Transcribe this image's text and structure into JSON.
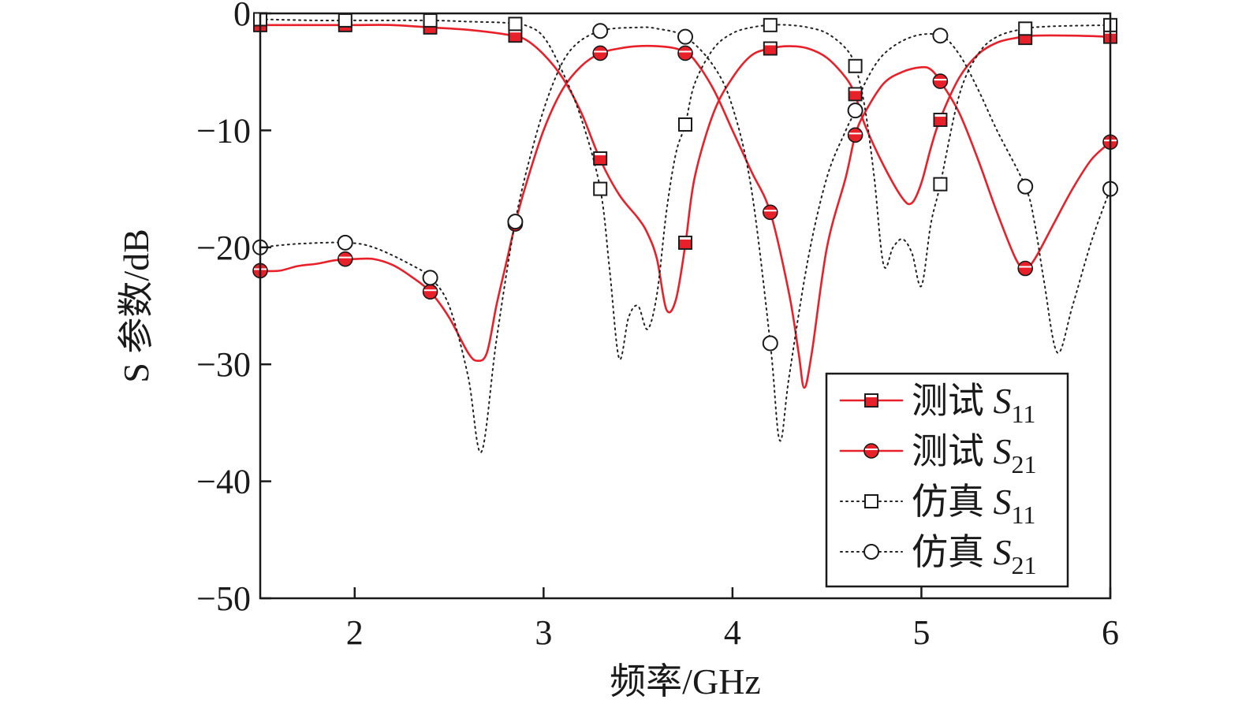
{
  "chart_data": {
    "type": "line",
    "xlabel": "频率/GHz",
    "ylabel": "S 参数/dB",
    "xlim": [
      1.5,
      6
    ],
    "ylim": [
      -50,
      0
    ],
    "xticks": [
      2,
      3,
      4,
      5,
      6
    ],
    "yticks": [
      0,
      -10,
      -20,
      -30,
      -40,
      -50
    ],
    "ytick_labels": [
      "0",
      "−10",
      "−20",
      "−30",
      "−40",
      "−50"
    ],
    "grid": false,
    "legend_position": "bottom-right",
    "series": [
      {
        "legend_prefix": "测试 ",
        "legend_symbol": "S",
        "legend_subscript": "11",
        "color": "#e8202a",
        "line_style": "solid",
        "marker": "square-filled",
        "points": [
          [
            1.5,
            -1.0
          ],
          [
            1.8,
            -1.0
          ],
          [
            2.0,
            -1.0
          ],
          [
            2.2,
            -1.0
          ],
          [
            2.4,
            -1.2
          ],
          [
            2.6,
            -1.4
          ],
          [
            2.8,
            -1.8
          ],
          [
            2.9,
            -2.2
          ],
          [
            3.0,
            -3.5
          ],
          [
            3.1,
            -5.5
          ],
          [
            3.2,
            -8.5
          ],
          [
            3.3,
            -12.5
          ],
          [
            3.4,
            -15.5
          ],
          [
            3.5,
            -17.5
          ],
          [
            3.55,
            -18.8
          ],
          [
            3.6,
            -21.0
          ],
          [
            3.65,
            -25.3
          ],
          [
            3.7,
            -24.5
          ],
          [
            3.75,
            -19.8
          ],
          [
            3.8,
            -14.0
          ],
          [
            3.9,
            -8.5
          ],
          [
            4.0,
            -5.5
          ],
          [
            4.1,
            -3.6
          ],
          [
            4.2,
            -3.0
          ],
          [
            4.3,
            -2.8
          ],
          [
            4.4,
            -3.0
          ],
          [
            4.5,
            -3.8
          ],
          [
            4.6,
            -5.5
          ],
          [
            4.65,
            -7.0
          ],
          [
            4.7,
            -9.5
          ],
          [
            4.8,
            -13.0
          ],
          [
            4.9,
            -15.8
          ],
          [
            4.95,
            -16.2
          ],
          [
            5.0,
            -14.5
          ],
          [
            5.05,
            -11.5
          ],
          [
            5.1,
            -9.0
          ],
          [
            5.2,
            -5.5
          ],
          [
            5.3,
            -3.5
          ],
          [
            5.4,
            -2.5
          ],
          [
            5.5,
            -2.1
          ],
          [
            5.6,
            -1.9
          ],
          [
            5.8,
            -1.9
          ],
          [
            6.0,
            -2.0
          ]
        ],
        "marker_points": [
          [
            1.5,
            -1.0
          ],
          [
            1.95,
            -1.0
          ],
          [
            2.4,
            -1.2
          ],
          [
            2.85,
            -1.9
          ],
          [
            3.3,
            -12.4
          ],
          [
            3.75,
            -19.6
          ],
          [
            4.2,
            -3.0
          ],
          [
            4.65,
            -6.9
          ],
          [
            5.1,
            -9.1
          ],
          [
            5.55,
            -2.1
          ],
          [
            6.0,
            -2.0
          ]
        ]
      },
      {
        "legend_prefix": "测试 ",
        "legend_symbol": "S",
        "legend_subscript": "21",
        "color": "#e8202a",
        "line_style": "solid",
        "marker": "circle-filled",
        "points": [
          [
            1.5,
            -22.0
          ],
          [
            1.6,
            -22.0
          ],
          [
            1.7,
            -21.6
          ],
          [
            1.8,
            -21.4
          ],
          [
            1.9,
            -21.1
          ],
          [
            2.0,
            -21.0
          ],
          [
            2.1,
            -21.0
          ],
          [
            2.2,
            -21.5
          ],
          [
            2.3,
            -22.5
          ],
          [
            2.4,
            -23.8
          ],
          [
            2.5,
            -26.0
          ],
          [
            2.6,
            -29.0
          ],
          [
            2.65,
            -29.7
          ],
          [
            2.7,
            -29.0
          ],
          [
            2.75,
            -25.0
          ],
          [
            2.8,
            -21.5
          ],
          [
            2.85,
            -18.0
          ],
          [
            2.9,
            -15.0
          ],
          [
            3.0,
            -10.0
          ],
          [
            3.1,
            -6.5
          ],
          [
            3.2,
            -4.5
          ],
          [
            3.3,
            -3.4
          ],
          [
            3.4,
            -3.0
          ],
          [
            3.5,
            -2.8
          ],
          [
            3.6,
            -2.8
          ],
          [
            3.7,
            -3.0
          ],
          [
            3.75,
            -3.4
          ],
          [
            3.8,
            -4.0
          ],
          [
            3.9,
            -6.5
          ],
          [
            4.0,
            -10.0
          ],
          [
            4.1,
            -13.5
          ],
          [
            4.2,
            -17.0
          ],
          [
            4.3,
            -24.0
          ],
          [
            4.35,
            -29.0
          ],
          [
            4.38,
            -32.0
          ],
          [
            4.42,
            -29.0
          ],
          [
            4.5,
            -20.0
          ],
          [
            4.6,
            -14.0
          ],
          [
            4.65,
            -10.4
          ],
          [
            4.7,
            -8.5
          ],
          [
            4.8,
            -6.0
          ],
          [
            4.9,
            -5.0
          ],
          [
            5.0,
            -4.6
          ],
          [
            5.05,
            -4.8
          ],
          [
            5.1,
            -5.8
          ],
          [
            5.2,
            -8.5
          ],
          [
            5.3,
            -12.5
          ],
          [
            5.4,
            -17.0
          ],
          [
            5.5,
            -21.0
          ],
          [
            5.55,
            -21.8
          ],
          [
            5.6,
            -21.0
          ],
          [
            5.7,
            -18.0
          ],
          [
            5.8,
            -15.0
          ],
          [
            5.9,
            -12.5
          ],
          [
            6.0,
            -11.0
          ]
        ],
        "marker_points": [
          [
            1.5,
            -22.0
          ],
          [
            1.95,
            -21.0
          ],
          [
            2.4,
            -23.8
          ],
          [
            2.85,
            -18.0
          ],
          [
            3.3,
            -3.4
          ],
          [
            3.75,
            -3.4
          ],
          [
            4.2,
            -17.0
          ],
          [
            4.65,
            -10.4
          ],
          [
            5.1,
            -5.8
          ],
          [
            5.55,
            -21.8
          ],
          [
            6.0,
            -11.0
          ]
        ]
      },
      {
        "legend_prefix": "仿真 ",
        "legend_symbol": "S",
        "legend_subscript": "11",
        "color": "#222222",
        "line_style": "dotted",
        "marker": "square-open",
        "points": [
          [
            1.5,
            -0.5
          ],
          [
            1.8,
            -0.6
          ],
          [
            2.0,
            -0.6
          ],
          [
            2.4,
            -0.6
          ],
          [
            2.6,
            -0.7
          ],
          [
            2.8,
            -0.8
          ],
          [
            2.9,
            -1.0
          ],
          [
            3.0,
            -2.0
          ],
          [
            3.1,
            -5.0
          ],
          [
            3.2,
            -9.0
          ],
          [
            3.3,
            -15.0
          ],
          [
            3.35,
            -22.0
          ],
          [
            3.4,
            -29.5
          ],
          [
            3.45,
            -26.0
          ],
          [
            3.5,
            -25.0
          ],
          [
            3.55,
            -27.0
          ],
          [
            3.6,
            -24.0
          ],
          [
            3.65,
            -17.0
          ],
          [
            3.7,
            -12.0
          ],
          [
            3.75,
            -9.5
          ],
          [
            3.8,
            -6.0
          ],
          [
            3.9,
            -3.0
          ],
          [
            4.0,
            -1.7
          ],
          [
            4.1,
            -1.2
          ],
          [
            4.2,
            -1.0
          ],
          [
            4.3,
            -1.0
          ],
          [
            4.4,
            -1.2
          ],
          [
            4.5,
            -1.7
          ],
          [
            4.6,
            -3.0
          ],
          [
            4.65,
            -4.5
          ],
          [
            4.7,
            -8.0
          ],
          [
            4.75,
            -14.0
          ],
          [
            4.8,
            -21.5
          ],
          [
            4.85,
            -20.0
          ],
          [
            4.9,
            -19.3
          ],
          [
            4.95,
            -20.5
          ],
          [
            5.0,
            -23.3
          ],
          [
            5.05,
            -18.0
          ],
          [
            5.1,
            -14.6
          ],
          [
            5.2,
            -7.0
          ],
          [
            5.3,
            -3.5
          ],
          [
            5.4,
            -2.0
          ],
          [
            5.55,
            -1.3
          ],
          [
            5.7,
            -1.1
          ],
          [
            6.0,
            -1.0
          ]
        ],
        "marker_points": [
          [
            1.5,
            -0.5
          ],
          [
            1.95,
            -0.6
          ],
          [
            2.4,
            -0.6
          ],
          [
            2.85,
            -0.9
          ],
          [
            3.3,
            -15.0
          ],
          [
            3.75,
            -9.5
          ],
          [
            4.2,
            -1.0
          ],
          [
            4.65,
            -4.5
          ],
          [
            5.1,
            -14.6
          ],
          [
            5.55,
            -1.3
          ],
          [
            6.0,
            -1.0
          ]
        ]
      },
      {
        "legend_prefix": "仿真 ",
        "legend_symbol": "S",
        "legend_subscript": "21",
        "color": "#222222",
        "line_style": "dotted",
        "marker": "circle-open",
        "points": [
          [
            1.5,
            -20.0
          ],
          [
            1.7,
            -19.7
          ],
          [
            1.95,
            -19.6
          ],
          [
            2.1,
            -20.0
          ],
          [
            2.3,
            -21.5
          ],
          [
            2.4,
            -22.6
          ],
          [
            2.5,
            -25.0
          ],
          [
            2.6,
            -31.0
          ],
          [
            2.67,
            -37.5
          ],
          [
            2.75,
            -28.0
          ],
          [
            2.85,
            -17.8
          ],
          [
            2.95,
            -11.0
          ],
          [
            3.05,
            -6.0
          ],
          [
            3.15,
            -3.0
          ],
          [
            3.3,
            -1.5
          ],
          [
            3.5,
            -1.2
          ],
          [
            3.6,
            -1.3
          ],
          [
            3.75,
            -2.0
          ],
          [
            3.9,
            -4.5
          ],
          [
            4.0,
            -8.0
          ],
          [
            4.1,
            -15.0
          ],
          [
            4.2,
            -28.2
          ],
          [
            4.25,
            -36.5
          ],
          [
            4.3,
            -31.0
          ],
          [
            4.4,
            -21.0
          ],
          [
            4.5,
            -14.0
          ],
          [
            4.6,
            -10.0
          ],
          [
            4.65,
            -8.3
          ],
          [
            4.7,
            -6.0
          ],
          [
            4.8,
            -3.5
          ],
          [
            4.95,
            -2.0
          ],
          [
            5.1,
            -1.9
          ],
          [
            5.2,
            -3.5
          ],
          [
            5.3,
            -6.5
          ],
          [
            5.4,
            -10.0
          ],
          [
            5.55,
            -14.8
          ],
          [
            5.6,
            -18.0
          ],
          [
            5.65,
            -23.0
          ],
          [
            5.72,
            -29.0
          ],
          [
            5.8,
            -25.0
          ],
          [
            5.9,
            -19.5
          ],
          [
            6.0,
            -15.0
          ]
        ],
        "marker_points": [
          [
            1.5,
            -20.0
          ],
          [
            1.95,
            -19.6
          ],
          [
            2.4,
            -22.6
          ],
          [
            2.85,
            -17.8
          ],
          [
            3.3,
            -1.5
          ],
          [
            3.75,
            -2.0
          ],
          [
            4.2,
            -28.2
          ],
          [
            4.65,
            -8.3
          ],
          [
            5.1,
            -1.9
          ],
          [
            5.55,
            -14.8
          ],
          [
            6.0,
            -15.0
          ]
        ]
      }
    ]
  }
}
